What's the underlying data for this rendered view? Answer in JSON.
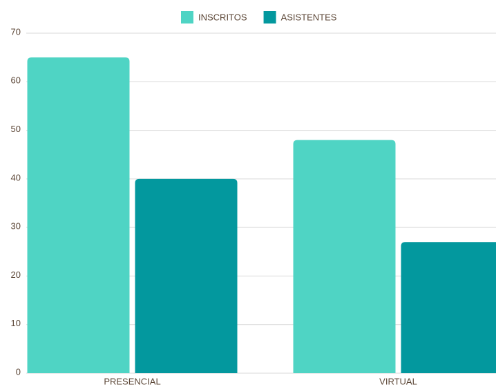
{
  "chart_data": {
    "type": "bar",
    "categories": [
      "PRESENCIAL",
      "VIRTUAL"
    ],
    "series": [
      {
        "name": "INSCRITOS",
        "color": "#4fd4c4",
        "values": [
          65,
          48
        ]
      },
      {
        "name": "ASISTENTES",
        "color": "#03989e",
        "values": [
          40,
          27
        ]
      }
    ],
    "ylim": [
      0,
      70
    ],
    "yticks": [
      0,
      10,
      20,
      30,
      40,
      50,
      60,
      70
    ],
    "grid": true,
    "legend": "top"
  }
}
